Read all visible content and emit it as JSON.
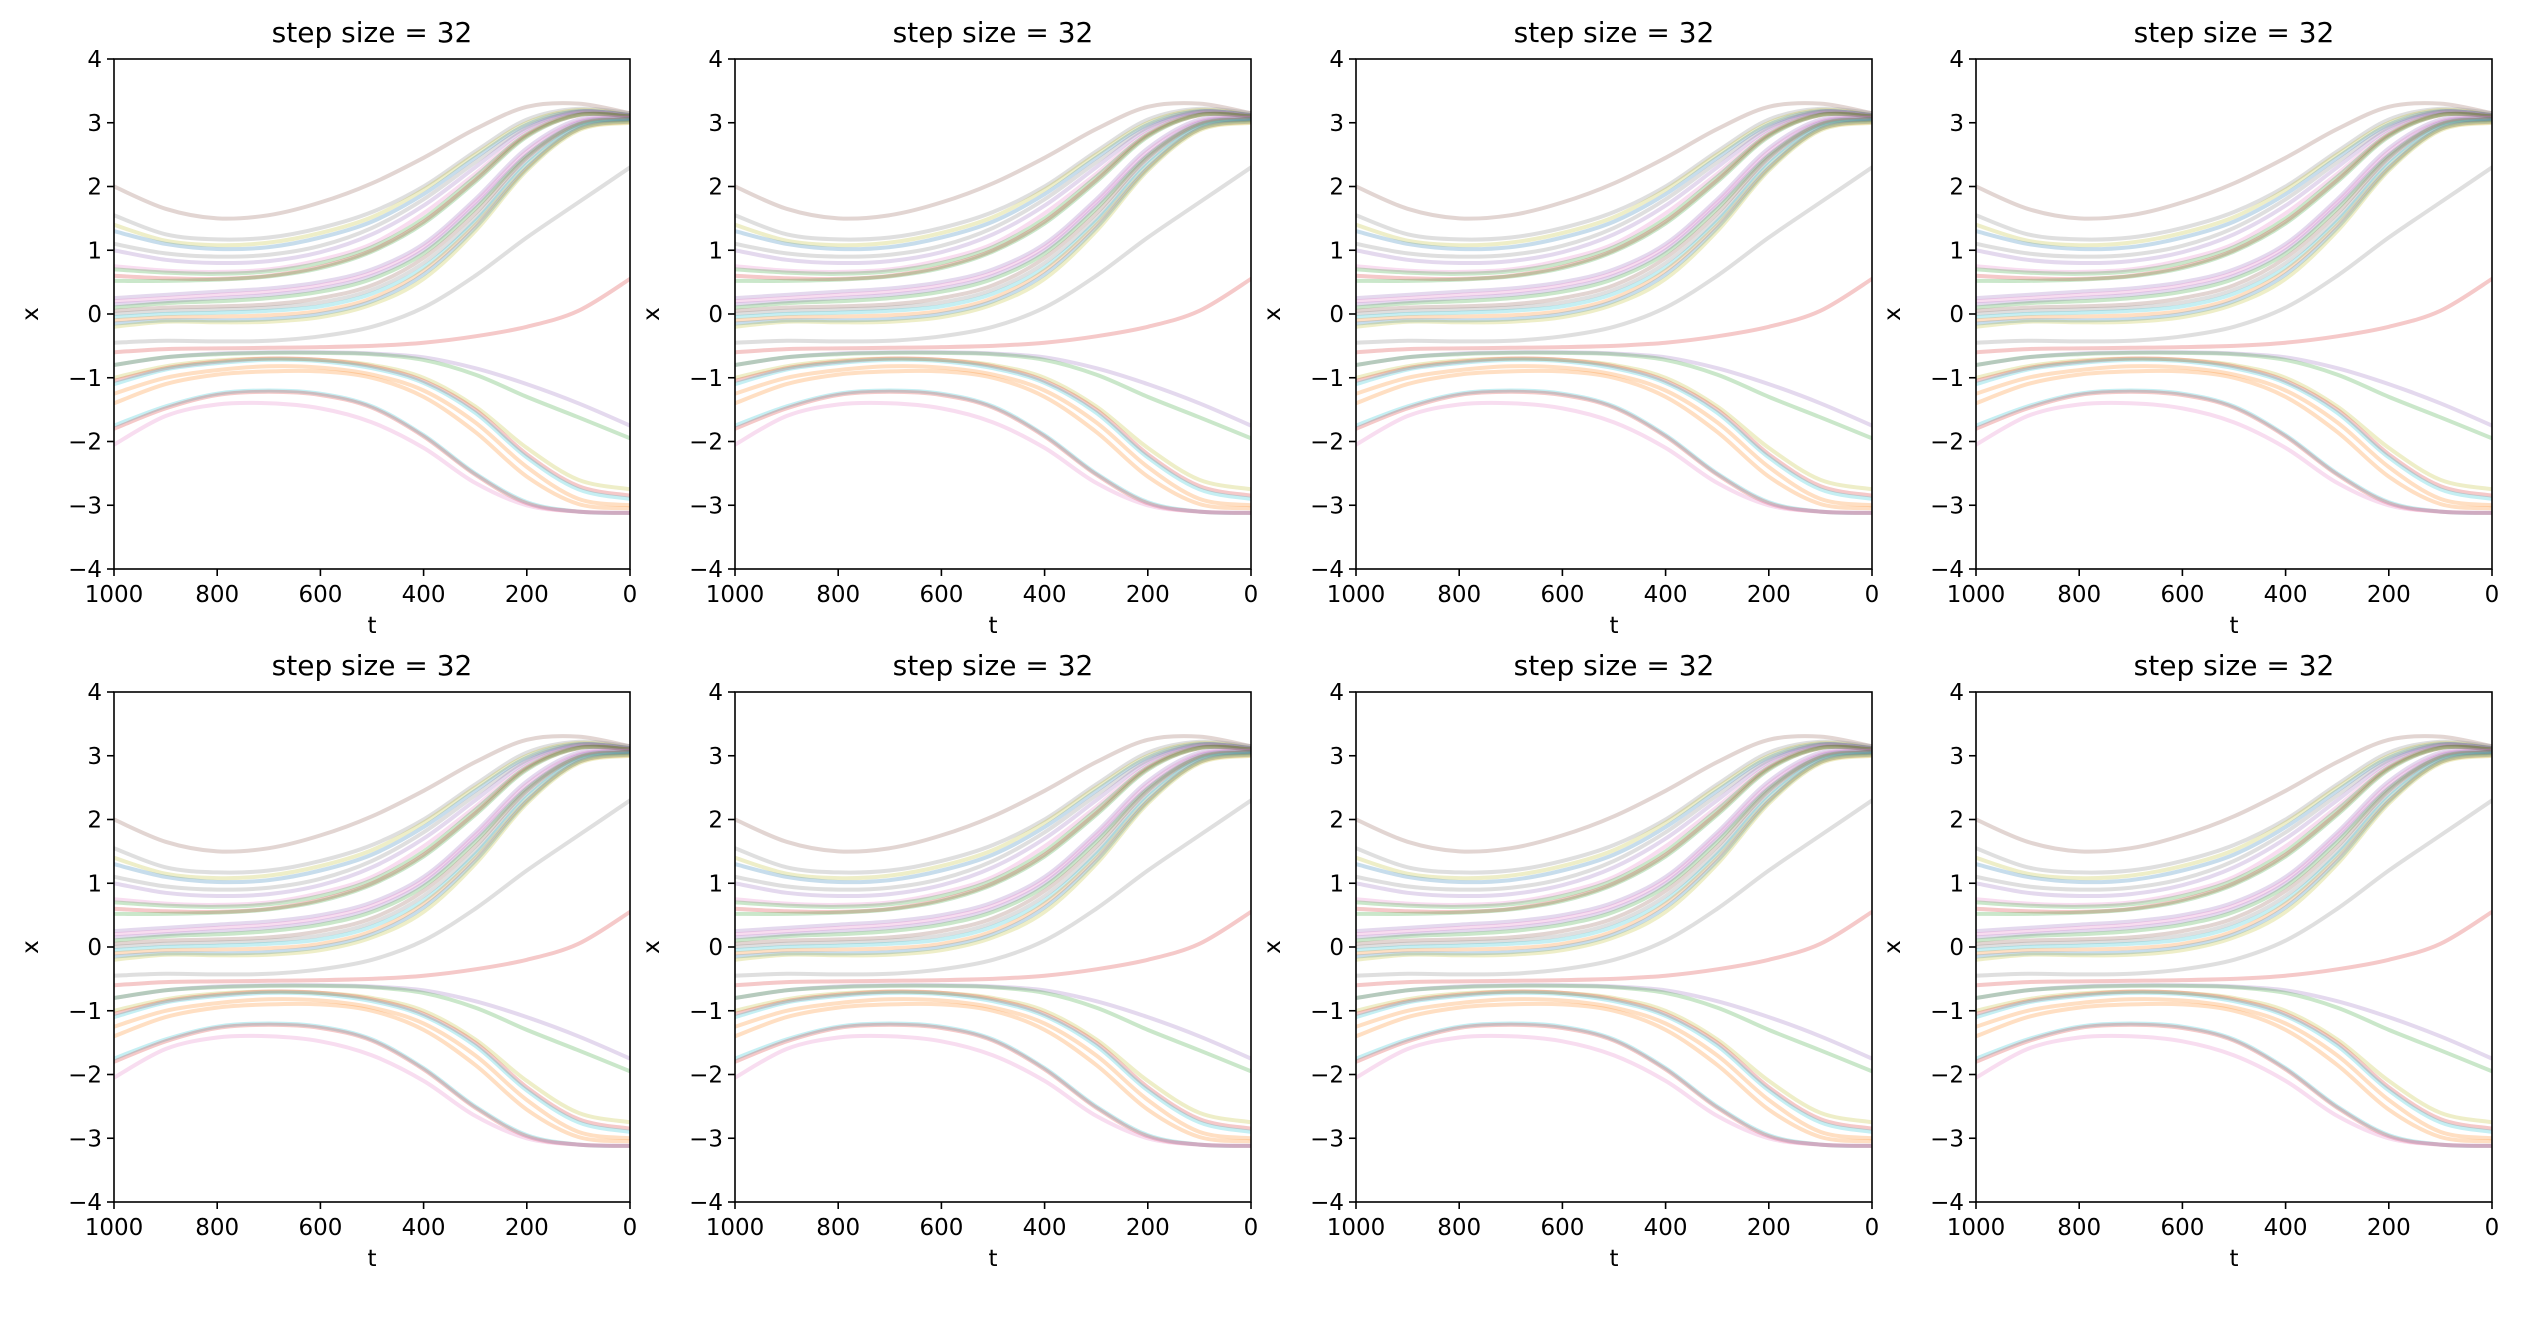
{
  "chart_data": {
    "type": "line",
    "layout": "2x4 grid of identical subplots",
    "subplots": [
      {
        "title": "step size = 32",
        "xlabel": "t",
        "ylabel": "x"
      },
      {
        "title": "step size = 32",
        "xlabel": "t",
        "ylabel": "x"
      },
      {
        "title": "step size = 32",
        "xlabel": "t",
        "ylabel": "x"
      },
      {
        "title": "step size = 32",
        "xlabel": "t",
        "ylabel": "x"
      },
      {
        "title": "step size = 32",
        "xlabel": "t",
        "ylabel": "x"
      },
      {
        "title": "step size = 32",
        "xlabel": "t",
        "ylabel": "x"
      },
      {
        "title": "step size = 32",
        "xlabel": "t",
        "ylabel": "x"
      },
      {
        "title": "step size = 32",
        "xlabel": "t",
        "ylabel": "x"
      }
    ],
    "xlim": [
      1000,
      0
    ],
    "ylim": [
      -4,
      4
    ],
    "x_inverted": true,
    "xticks": [
      "1000",
      "800",
      "600",
      "400",
      "200",
      "0"
    ],
    "xtick_values": [
      1000,
      800,
      600,
      400,
      200,
      0
    ],
    "yticks": [
      "−4",
      "−3",
      "−2",
      "−1",
      "0",
      "1",
      "2",
      "3",
      "4"
    ],
    "ytick_values": [
      -4,
      -3,
      -2,
      -1,
      0,
      1,
      2,
      3,
      4
    ],
    "grid": false,
    "legend": "none",
    "line_alpha": 0.25,
    "x": [
      1000,
      900,
      800,
      700,
      600,
      500,
      400,
      300,
      200,
      100,
      0
    ],
    "series": [
      {
        "color": "#8c564b",
        "values": [
          2.0,
          1.65,
          1.5,
          1.55,
          1.75,
          2.05,
          2.45,
          2.9,
          3.25,
          3.3,
          3.15
        ]
      },
      {
        "color": "#7f7f7f",
        "values": [
          1.55,
          1.25,
          1.17,
          1.2,
          1.35,
          1.6,
          2.0,
          2.55,
          3.05,
          3.22,
          3.15
        ]
      },
      {
        "color": "#bcbd22",
        "values": [
          1.4,
          1.15,
          1.08,
          1.12,
          1.27,
          1.52,
          1.95,
          2.5,
          3.0,
          3.2,
          3.12
        ]
      },
      {
        "color": "#1f77b4",
        "values": [
          1.3,
          1.1,
          1.02,
          1.05,
          1.2,
          1.45,
          1.88,
          2.45,
          2.97,
          3.18,
          3.12
        ]
      },
      {
        "color": "#7f7f7f",
        "values": [
          1.1,
          0.95,
          0.9,
          0.93,
          1.07,
          1.35,
          1.8,
          2.38,
          2.93,
          3.17,
          3.12
        ]
      },
      {
        "color": "#9467bd",
        "values": [
          1.0,
          0.85,
          0.8,
          0.83,
          0.97,
          1.25,
          1.7,
          2.3,
          2.9,
          3.17,
          3.12
        ]
      },
      {
        "color": "#e377c2",
        "values": [
          0.75,
          0.68,
          0.66,
          0.7,
          0.85,
          1.1,
          1.58,
          2.2,
          2.85,
          3.15,
          3.1
        ]
      },
      {
        "color": "#2ca02c",
        "values": [
          0.7,
          0.65,
          0.63,
          0.67,
          0.8,
          1.05,
          1.5,
          2.15,
          2.82,
          3.13,
          3.1
        ]
      },
      {
        "color": "#d62728",
        "values": [
          0.6,
          0.56,
          0.55,
          0.6,
          0.74,
          1.0,
          1.45,
          2.1,
          2.8,
          3.12,
          3.1
        ]
      },
      {
        "color": "#2ca02c",
        "values": [
          0.52,
          0.52,
          0.54,
          0.59,
          0.72,
          0.98,
          1.42,
          2.07,
          2.78,
          3.12,
          3.1
        ]
      },
      {
        "color": "#9467bd",
        "values": [
          0.25,
          0.3,
          0.35,
          0.4,
          0.5,
          0.7,
          1.1,
          1.8,
          2.6,
          3.05,
          3.08
        ]
      },
      {
        "color": "#e377c2",
        "values": [
          0.2,
          0.25,
          0.3,
          0.35,
          0.45,
          0.65,
          1.05,
          1.75,
          2.55,
          3.02,
          3.08
        ]
      },
      {
        "color": "#9467bd",
        "values": [
          0.15,
          0.2,
          0.25,
          0.3,
          0.4,
          0.6,
          1.0,
          1.7,
          2.5,
          3.0,
          3.07
        ]
      },
      {
        "color": "#2ca02c",
        "values": [
          0.1,
          0.17,
          0.2,
          0.25,
          0.35,
          0.55,
          0.95,
          1.65,
          2.48,
          2.98,
          3.06
        ]
      },
      {
        "color": "#8c564b",
        "values": [
          0.05,
          0.1,
          0.12,
          0.15,
          0.25,
          0.45,
          0.88,
          1.58,
          2.45,
          2.97,
          3.05
        ]
      },
      {
        "color": "#7f7f7f",
        "values": [
          0.0,
          0.05,
          0.07,
          0.1,
          0.18,
          0.38,
          0.8,
          1.5,
          2.4,
          2.95,
          3.05
        ]
      },
      {
        "color": "#17becf",
        "values": [
          -0.05,
          0.0,
          0.02,
          0.05,
          0.12,
          0.32,
          0.73,
          1.45,
          2.35,
          2.93,
          3.04
        ]
      },
      {
        "color": "#ff7f0e",
        "values": [
          -0.1,
          -0.05,
          -0.04,
          -0.02,
          0.05,
          0.25,
          0.68,
          1.4,
          2.3,
          2.9,
          3.01
        ]
      },
      {
        "color": "#1f77b4",
        "values": [
          -0.15,
          -0.1,
          -0.1,
          -0.08,
          0.0,
          0.2,
          0.62,
          1.35,
          2.28,
          2.9,
          3.02
        ]
      },
      {
        "color": "#bcbd22",
        "values": [
          -0.2,
          -0.12,
          -0.13,
          -0.12,
          -0.05,
          0.15,
          0.55,
          1.3,
          2.25,
          2.88,
          3.0
        ]
      },
      {
        "color": "#7f7f7f",
        "values": [
          -0.45,
          -0.42,
          -0.43,
          -0.42,
          -0.35,
          -0.2,
          0.1,
          0.6,
          1.2,
          1.75,
          2.3
        ]
      },
      {
        "color": "#d62728",
        "values": [
          -0.6,
          -0.55,
          -0.54,
          -0.53,
          -0.52,
          -0.5,
          -0.45,
          -0.35,
          -0.2,
          0.05,
          0.55
        ]
      },
      {
        "color": "#9467bd",
        "values": [
          -0.8,
          -0.68,
          -0.62,
          -0.6,
          -0.6,
          -0.62,
          -0.68,
          -0.85,
          -1.1,
          -1.4,
          -1.75
        ]
      },
      {
        "color": "#2ca02c",
        "values": [
          -0.8,
          -0.68,
          -0.63,
          -0.61,
          -0.61,
          -0.63,
          -0.72,
          -0.95,
          -1.3,
          -1.62,
          -1.95
        ]
      },
      {
        "color": "#bcbd22",
        "values": [
          -1.0,
          -0.82,
          -0.73,
          -0.7,
          -0.72,
          -0.8,
          -1.0,
          -1.45,
          -2.1,
          -2.6,
          -2.75
        ]
      },
      {
        "color": "#d62728",
        "values": [
          -1.05,
          -0.85,
          -0.75,
          -0.7,
          -0.72,
          -0.82,
          -1.05,
          -1.5,
          -2.2,
          -2.7,
          -2.85
        ]
      },
      {
        "color": "#17becf",
        "values": [
          -1.1,
          -0.87,
          -0.77,
          -0.72,
          -0.74,
          -0.85,
          -1.08,
          -1.55,
          -2.25,
          -2.75,
          -2.9
        ]
      },
      {
        "color": "#ff7f0e",
        "values": [
          -1.25,
          -1.0,
          -0.88,
          -0.82,
          -0.84,
          -0.95,
          -1.2,
          -1.7,
          -2.4,
          -2.9,
          -3.0
        ]
      },
      {
        "color": "#ff7f0e",
        "values": [
          -1.4,
          -1.1,
          -0.95,
          -0.9,
          -0.9,
          -1.0,
          -1.3,
          -1.85,
          -2.55,
          -2.98,
          -3.05
        ]
      },
      {
        "color": "#17becf",
        "values": [
          -1.75,
          -1.45,
          -1.25,
          -1.2,
          -1.25,
          -1.45,
          -1.9,
          -2.5,
          -2.95,
          -3.1,
          -3.12
        ]
      },
      {
        "color": "#d62728",
        "values": [
          -1.8,
          -1.48,
          -1.27,
          -1.22,
          -1.27,
          -1.47,
          -1.92,
          -2.52,
          -2.97,
          -3.1,
          -3.12
        ]
      },
      {
        "color": "#e377c2",
        "values": [
          -2.05,
          -1.6,
          -1.42,
          -1.4,
          -1.48,
          -1.7,
          -2.1,
          -2.65,
          -3.0,
          -3.1,
          -3.12
        ]
      }
    ]
  }
}
